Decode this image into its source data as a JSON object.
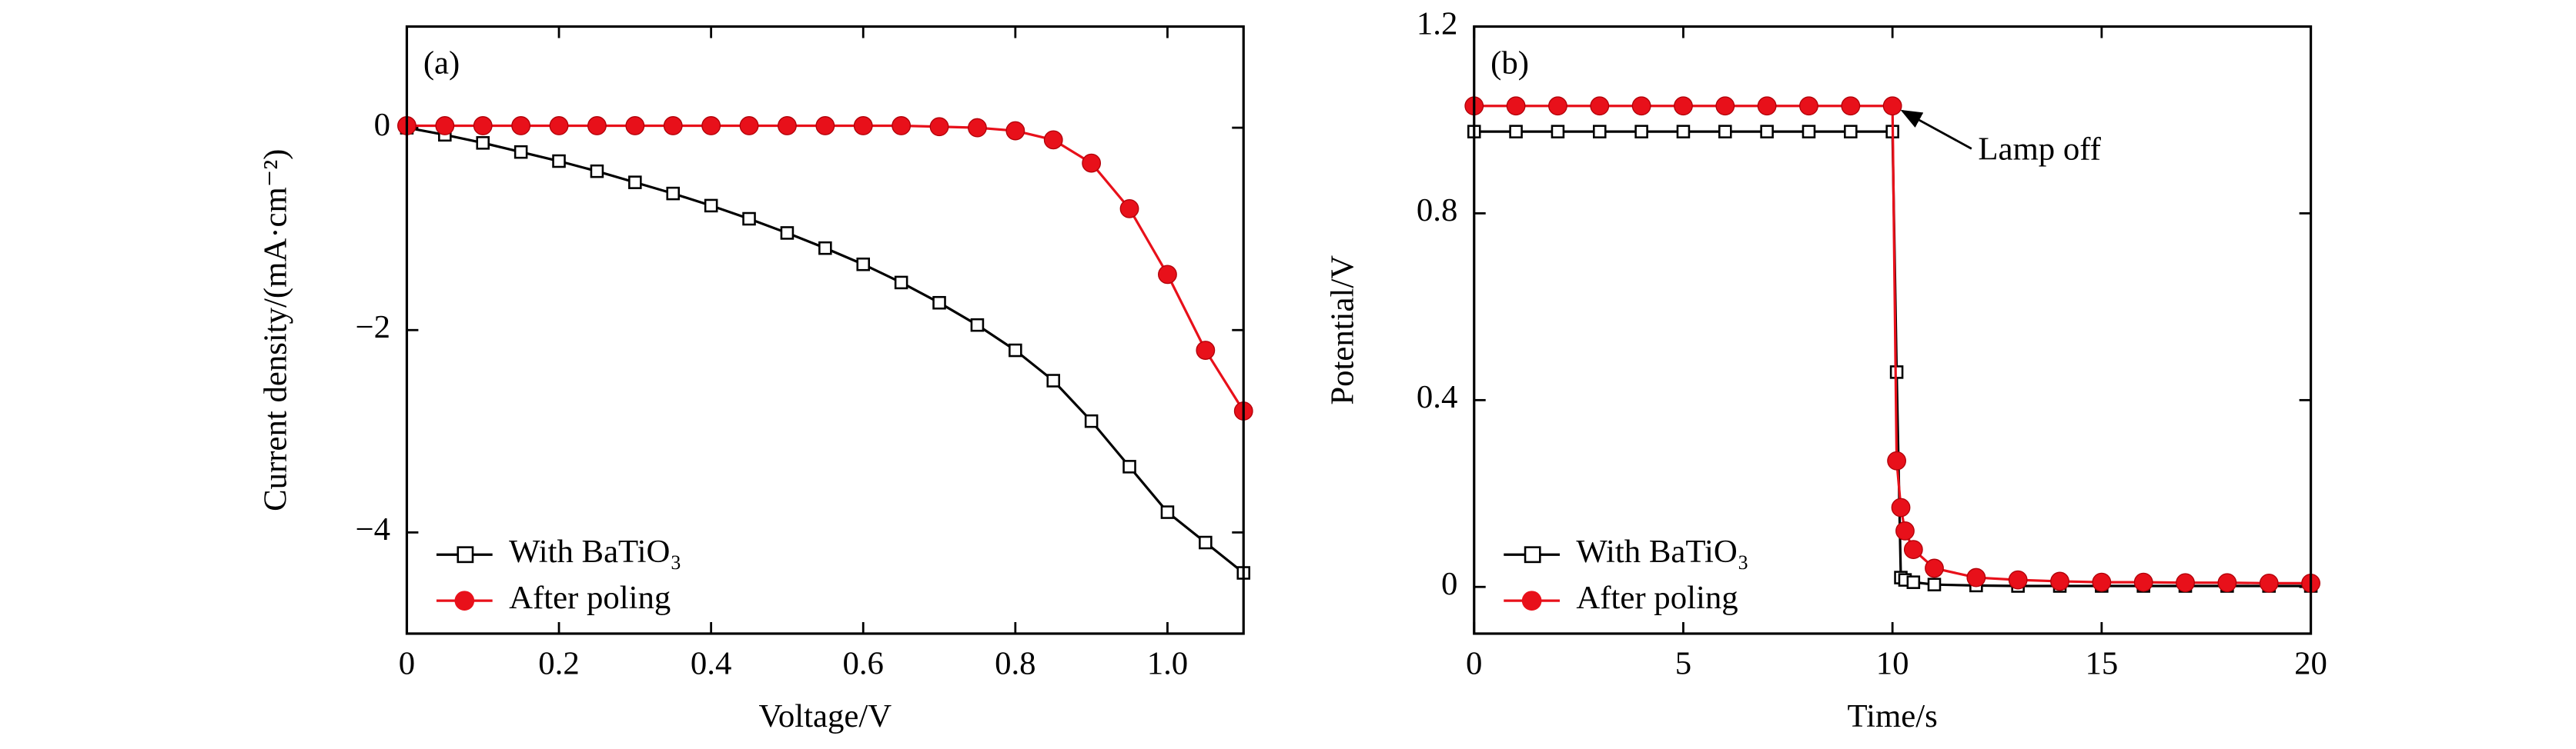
{
  "chart_data": [
    {
      "type": "line",
      "panel": "(a)",
      "x_label": "Voltage/V",
      "y_label": "Current density/(mA·cm⁻²)",
      "x": [
        0,
        0.05,
        0.1,
        0.15,
        0.2,
        0.25,
        0.3,
        0.35,
        0.4,
        0.45,
        0.5,
        0.55,
        0.6,
        0.65,
        0.7,
        0.75,
        0.8,
        0.85,
        0.9,
        0.95,
        1.0,
        1.05,
        1.1
      ],
      "series": [
        {
          "name": "With BaTiO₃",
          "color": "#000000",
          "marker": "square",
          "values": [
            0,
            -0.07,
            -0.15,
            -0.24,
            -0.33,
            -0.43,
            -0.54,
            -0.65,
            -0.77,
            -0.9,
            -1.04,
            -1.19,
            -1.35,
            -1.53,
            -1.73,
            -1.95,
            -2.2,
            -2.5,
            -2.9,
            -3.35,
            -3.8,
            -4.1,
            -4.4
          ]
        },
        {
          "name": "After poling",
          "color": "#e8101a",
          "marker": "circle",
          "values": [
            0.02,
            0.02,
            0.02,
            0.02,
            0.02,
            0.02,
            0.02,
            0.02,
            0.02,
            0.02,
            0.02,
            0.02,
            0.02,
            0.02,
            0.01,
            0,
            -0.03,
            -0.12,
            -0.35,
            -0.8,
            -1.45,
            -2.2,
            -2.8
          ]
        }
      ],
      "xlim": [
        0,
        1.1
      ],
      "xticks": [
        0,
        0.2,
        0.4,
        0.6,
        0.8,
        {
          "value": 1.0,
          "label": "1.0"
        }
      ],
      "ylim": [
        -5,
        1
      ],
      "yticks": [
        {
          "value": -4,
          "label": "−4"
        },
        {
          "value": -2,
          "label": "−2"
        },
        0
      ],
      "legend": "lower-left"
    },
    {
      "type": "line",
      "panel": "(b)",
      "x_label": "Time/s",
      "y_label": "Potential/V",
      "annotation": "Lamp off",
      "x": [
        0,
        1,
        2,
        3,
        4,
        5,
        6,
        7,
        8,
        9,
        10,
        10.1,
        10.2,
        10.3,
        10.5,
        11,
        12,
        13,
        14,
        15,
        16,
        17,
        18,
        19,
        20
      ],
      "series": [
        {
          "name": "With BaTiO₃",
          "color": "#000000",
          "marker": "square",
          "values": [
            0.975,
            0.975,
            0.975,
            0.975,
            0.975,
            0.975,
            0.975,
            0.975,
            0.975,
            0.975,
            0.975,
            0.46,
            0.02,
            0.015,
            0.01,
            0.005,
            0.003,
            0.002,
            0.002,
            0.002,
            0.002,
            0.002,
            0.002,
            0.002,
            0.002
          ]
        },
        {
          "name": "After poling",
          "color": "#e8101a",
          "marker": "circle",
          "values": [
            1.03,
            1.03,
            1.03,
            1.03,
            1.03,
            1.03,
            1.03,
            1.03,
            1.03,
            1.03,
            1.03,
            0.27,
            0.17,
            0.12,
            0.08,
            0.04,
            0.02,
            0.015,
            0.012,
            0.01,
            0.01,
            0.009,
            0.009,
            0.008,
            0.008
          ]
        }
      ],
      "xlim": [
        0,
        20
      ],
      "xticks": [
        0,
        5,
        10,
        15,
        20
      ],
      "ylim": [
        -0.1,
        1.2
      ],
      "yticks": [
        0,
        0.4,
        0.8,
        1.2
      ],
      "legend": "lower-left"
    }
  ]
}
